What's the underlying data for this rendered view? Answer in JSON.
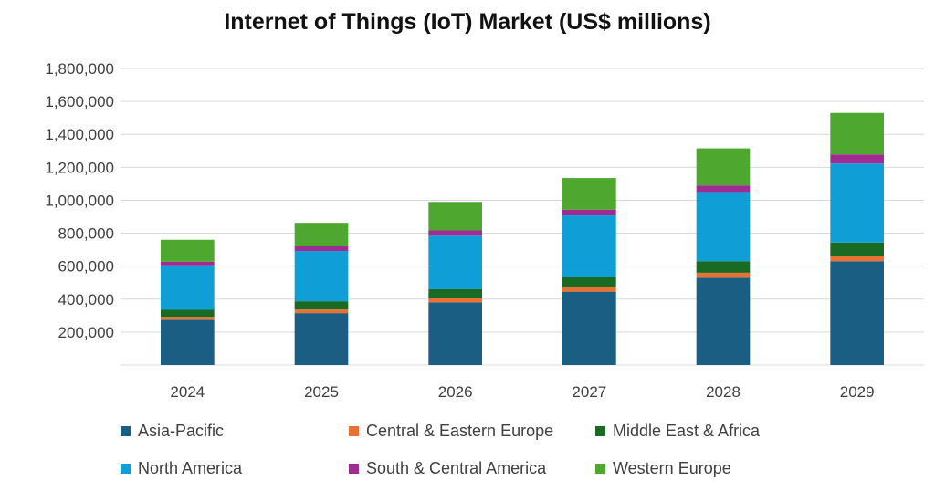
{
  "chart_data": {
    "type": "bar",
    "stacked": true,
    "title": "Internet of Things (IoT) Market (US$ millions)",
    "xlabel": "",
    "ylabel": "",
    "categories": [
      "2024",
      "2025",
      "2026",
      "2027",
      "2028",
      "2029"
    ],
    "ylim": [
      0,
      1800000
    ],
    "yticks": [
      200000,
      400000,
      600000,
      800000,
      1000000,
      1200000,
      1400000,
      1600000,
      1800000
    ],
    "ytick_labels": [
      "200,000",
      "400,000",
      "600,000",
      "800,000",
      "1,000,000",
      "1,200,000",
      "1,400,000",
      "1,600,000",
      "1,800,000"
    ],
    "grid": true,
    "legend_position": "bottom",
    "series": [
      {
        "name": "Asia-Pacific",
        "color": "#1A5E83",
        "values": [
          275000,
          315000,
          380000,
          445000,
          530000,
          630000
        ]
      },
      {
        "name": "Central & Eastern Europe",
        "color": "#E97132",
        "values": [
          18000,
          22000,
          25000,
          28000,
          30000,
          33000
        ]
      },
      {
        "name": "Middle East & Africa",
        "color": "#196B24",
        "values": [
          42000,
          50000,
          55000,
          60000,
          70000,
          80000
        ]
      },
      {
        "name": "North America",
        "color": "#0F9ED5",
        "values": [
          270000,
          305000,
          325000,
          375000,
          420000,
          480000
        ]
      },
      {
        "name": "South & Central America",
        "color": "#A02B93",
        "values": [
          22000,
          28000,
          32000,
          35000,
          40000,
          55000
        ]
      },
      {
        "name": "Western Europe",
        "color": "#4EA72E",
        "values": [
          133000,
          143000,
          173000,
          192000,
          225000,
          252000
        ]
      }
    ]
  }
}
